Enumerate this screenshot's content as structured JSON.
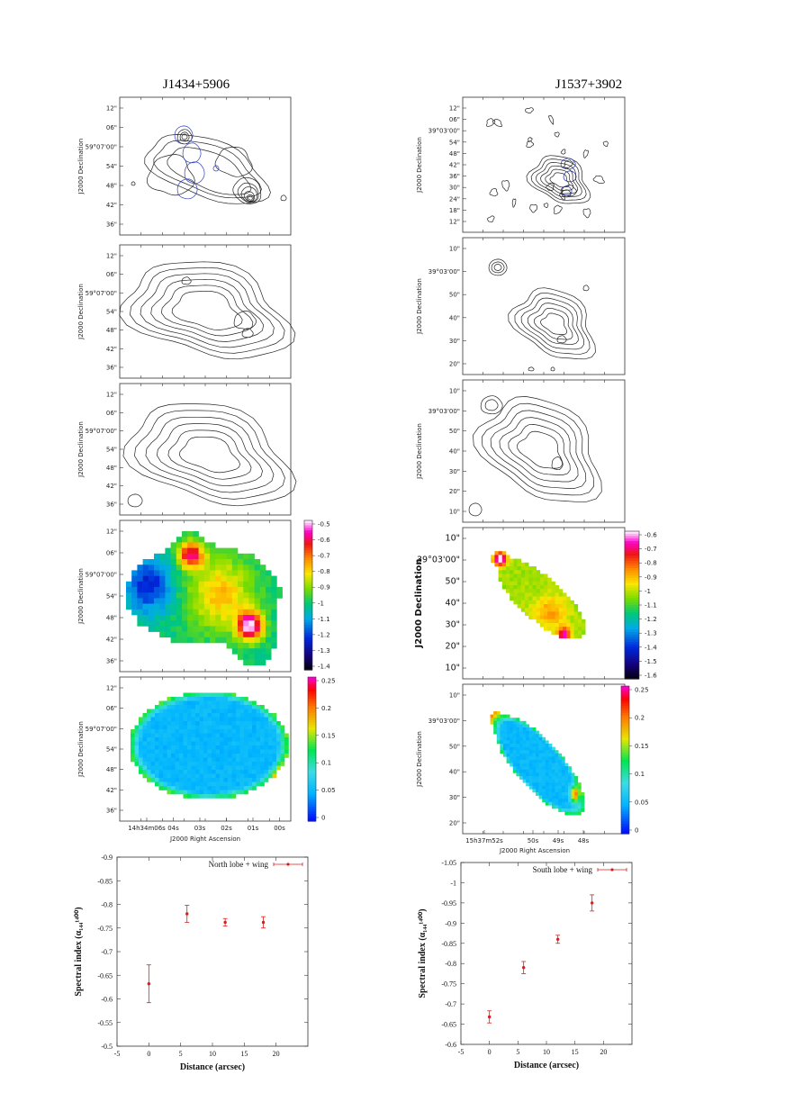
{
  "figure": {
    "left": {
      "title": "J1434+5906",
      "dec_label": "J2000 Declination",
      "ra_label": "J2000 Right Ascension",
      "panel1_dec_ticks": [
        "12\"",
        "06\"",
        "59°07'00\"",
        "54\"",
        "48\"",
        "42\"",
        "36\""
      ],
      "panel2_dec_ticks": [
        "12\"",
        "06\"",
        "59°07'00\"",
        "54\"",
        "48\"",
        "42\"",
        "36\""
      ],
      "panel3_dec_ticks": [
        "12\"",
        "06\"",
        "59°07'00\"",
        "54\"",
        "48\"",
        "42\"",
        "36\""
      ],
      "panel4_dec_ticks": [
        "12\"",
        "06\"",
        "59°07'00\"",
        "54\"",
        "48\"",
        "42\"",
        "36\""
      ],
      "panel5_dec_ticks": [
        "12\"",
        "06\"",
        "59°07'00\"",
        "54\"",
        "48\"",
        "42\"",
        "36\""
      ],
      "ra_ticks": [
        "14h34m06s",
        "04s",
        "03s",
        "02s",
        "01s",
        "00s"
      ],
      "index_colorbar": [
        "-0.5",
        "-0.6",
        "-0.7",
        "-0.8",
        "-0.9",
        "-1",
        "-1.1",
        "-1.2",
        "-1.3",
        "-1.4"
      ],
      "error_colorbar": [
        "0.25",
        "0.2",
        "0.15",
        "0.1",
        "0.05",
        "0"
      ]
    },
    "right": {
      "title": "J1537+3902",
      "dec_label": "J2000 Declination",
      "ra_label": "J2000 Right Ascension",
      "panel1_dec_ticks": [
        "12\"",
        "06\"",
        "39°03'00\"",
        "54\"",
        "48\"",
        "42\"",
        "36\"",
        "30\"",
        "24\"",
        "18\"",
        "12\""
      ],
      "panel2_dec_ticks": [
        "10\"",
        "39°03'00\"",
        "50\"",
        "40\"",
        "30\"",
        "20\""
      ],
      "panel3_dec_ticks": [
        "10\"",
        "39°03'00\"",
        "50\"",
        "40\"",
        "30\"",
        "20\"",
        "10\""
      ],
      "panel4_dec_ticks": [
        "10\"",
        "39°03'00\"",
        "50\"",
        "40\"",
        "30\"",
        "20\"",
        "10\""
      ],
      "panel5_dec_ticks": [
        "10\"",
        "39°03'00\"",
        "50\"",
        "40\"",
        "30\"",
        "20\""
      ],
      "ra_ticks": [
        "15h37m52s",
        "50s",
        "49s",
        "48s"
      ],
      "index_colorbar": [
        "-0.6",
        "-0.7",
        "-0.8",
        "-0.9",
        "-1",
        "-1.1",
        "-1.2",
        "-1.3",
        "-1.4",
        "-1.5",
        "-1.6"
      ],
      "error_colorbar": [
        "0.25",
        "0.2",
        "0.15",
        "0.1",
        "0.05",
        "0"
      ]
    }
  },
  "chart_data": [
    {
      "type": "scatter",
      "title": "",
      "legend": "North lobe + wing",
      "xlabel": "Distance (arcsec)",
      "ylabel": "Spectral index (α₁₄₄¹⁴⁰⁰)",
      "xlim": [
        -5,
        25
      ],
      "ylim": [
        -0.5,
        -0.9
      ],
      "xticks": [
        "-5",
        "0",
        "5",
        "10",
        "15",
        "20"
      ],
      "yticks": [
        "-0.9",
        "-0.85",
        "-0.8",
        "-0.75",
        "-0.7",
        "-0.65",
        "-0.6",
        "-0.55",
        "-0.5"
      ],
      "points": [
        {
          "x": 0,
          "y": -0.632,
          "err": 0.04
        },
        {
          "x": 6,
          "y": -0.78,
          "err": 0.018
        },
        {
          "x": 12,
          "y": -0.762,
          "err": 0.008
        },
        {
          "x": 18,
          "y": -0.762,
          "err": 0.012
        }
      ],
      "color": "#d62020"
    },
    {
      "type": "scatter",
      "title": "",
      "legend": "South lobe + wing",
      "xlabel": "Distance (arcsec)",
      "ylabel": "Spectral index (α₁₄₄¹⁴⁰⁰)",
      "xlim": [
        -5,
        25
      ],
      "ylim": [
        -0.6,
        -1.05
      ],
      "xticks": [
        "-5",
        "0",
        "5",
        "10",
        "15",
        "20"
      ],
      "yticks": [
        "-1.05",
        "-1",
        "-0.95",
        "-0.9",
        "-0.85",
        "-0.8",
        "-0.75",
        "-0.7",
        "-0.65",
        "-0.6"
      ],
      "points": [
        {
          "x": 0,
          "y": -0.668,
          "err": 0.015
        },
        {
          "x": 6,
          "y": -0.79,
          "err": 0.015
        },
        {
          "x": 12,
          "y": -0.86,
          "err": 0.01
        },
        {
          "x": 18,
          "y": -0.95,
          "err": 0.02
        }
      ],
      "color": "#d62020"
    }
  ]
}
